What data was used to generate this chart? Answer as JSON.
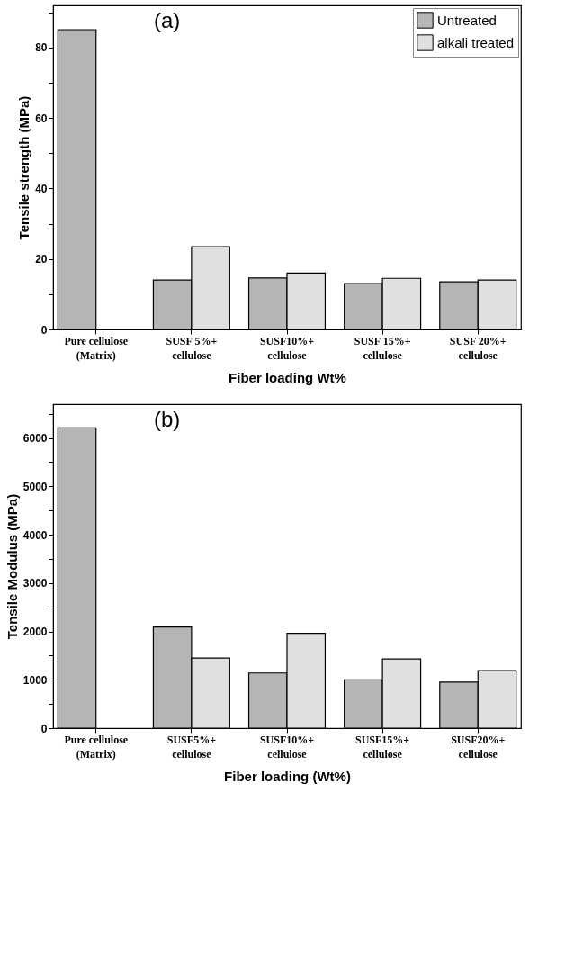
{
  "chart_data": [
    {
      "type": "bar",
      "annotations": [
        "(a)"
      ],
      "xlabel": "Fiber loading Wt%",
      "ylabel": "Tensile strength (MPa)",
      "categories": [
        "Pure cellulose\n(Matrix)",
        "SUSF 5%+\ncellulose",
        "SUSF10%+\ncellulose",
        "SUSF 15%+\ncellulose",
        "SUSF 20%+\ncellulose"
      ],
      "series": [
        {
          "name": "Untreated",
          "color": "#b5b5b5",
          "values": [
            85.1,
            14.0,
            14.6,
            13.0,
            13.5
          ]
        },
        {
          "name": "alkali treated",
          "color": "#e0e0e0",
          "values": [
            null,
            23.5,
            16.0,
            14.5,
            14.0
          ]
        }
      ],
      "ylim": [
        0,
        92
      ],
      "yticks": [
        0,
        {
          "value": 10,
          "label": null
        },
        20,
        {
          "value": 30,
          "label": null
        },
        40,
        {
          "value": 50,
          "label": null
        },
        60,
        {
          "value": 70,
          "label": null
        },
        80,
        {
          "value": 90,
          "label": null
        }
      ],
      "grid": false,
      "legend": "top right"
    },
    {
      "type": "bar",
      "annotations": [
        "(b)"
      ],
      "xlabel": "Fiber loading (Wt%)",
      "ylabel": "Tensile Modulus (MPa)",
      "categories": [
        "Pure cellulose\n(Matrix)",
        "SUSF5%+\ncellulose",
        "SUSF10%+\ncellulose",
        "SUSF15%+\ncellulose",
        "SUSF20%+\ncellulose"
      ],
      "series": [
        {
          "name": "Untreated",
          "color": "#b5b5b5",
          "values": [
            6210,
            2090,
            1140,
            1000,
            950
          ]
        },
        {
          "name": "alkali treated",
          "color": "#e0e0e0",
          "values": [
            null,
            1450,
            1960,
            1430,
            1190
          ]
        }
      ],
      "ylim": [
        0,
        6700
      ],
      "yticks": [
        0,
        {
          "value": 500,
          "label": null
        },
        1000,
        {
          "value": 1500,
          "label": null
        },
        2000,
        {
          "value": 2500,
          "label": null
        },
        3000,
        {
          "value": 3500,
          "label": null
        },
        4000,
        {
          "value": 4500,
          "label": null
        },
        5000,
        {
          "value": 5500,
          "label": null
        },
        6000,
        {
          "value": 6500,
          "label": null
        }
      ],
      "grid": false,
      "legend": "top right"
    }
  ]
}
